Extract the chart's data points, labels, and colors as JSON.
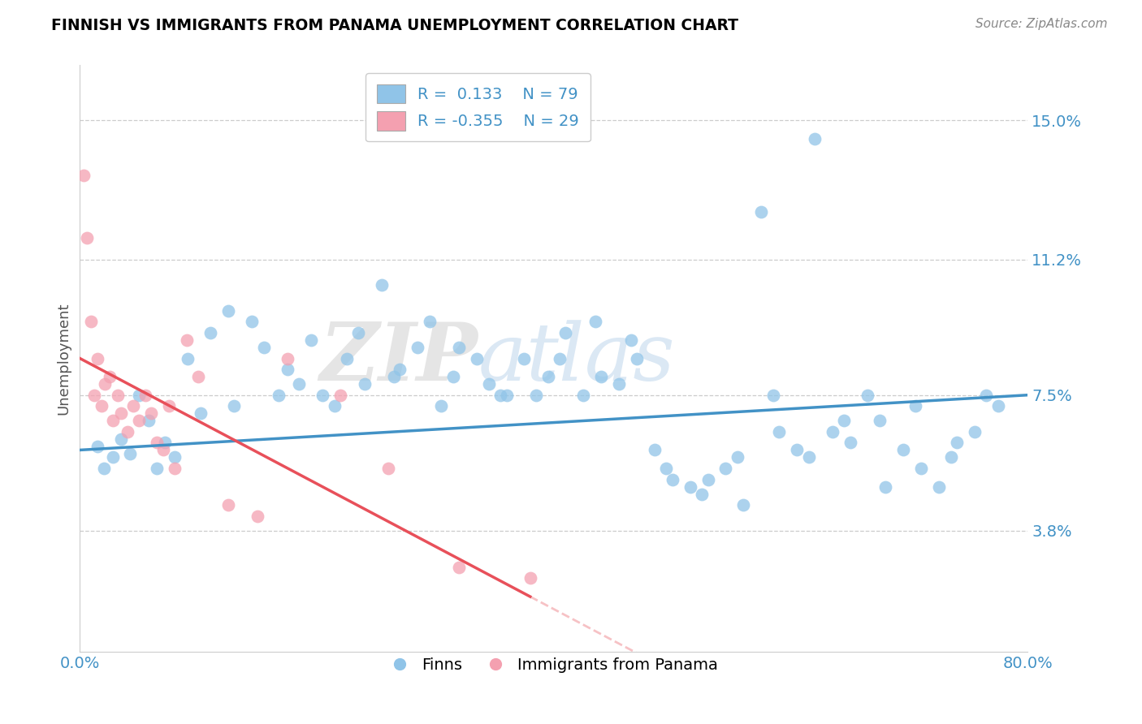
{
  "title": "FINNISH VS IMMIGRANTS FROM PANAMA UNEMPLOYMENT CORRELATION CHART",
  "source_text": "Source: ZipAtlas.com",
  "ylabel_label": "Unemployment",
  "xmin": 0.0,
  "xmax": 80.0,
  "ymin": 0.5,
  "ymax": 16.5,
  "ylabel_ticks": [
    3.8,
    7.5,
    11.2,
    15.0
  ],
  "legend_label_finns": "Finns",
  "legend_label_immigrants": "Immigrants from Panama",
  "finns_R": "0.133",
  "finns_N": "79",
  "immigrants_R": "-0.355",
  "immigrants_N": "29",
  "blue_color": "#90c4e8",
  "pink_color": "#f4a0b0",
  "line_blue": "#4292c6",
  "line_pink": "#e8505a",
  "watermark_zip": "ZIP",
  "watermark_atlas": "atlas",
  "finns_x": [
    1.5,
    2.0,
    2.8,
    3.5,
    4.2,
    5.0,
    5.8,
    6.5,
    7.2,
    8.0,
    9.1,
    10.2,
    11.0,
    12.5,
    13.0,
    14.5,
    15.5,
    16.8,
    17.5,
    18.5,
    19.5,
    20.5,
    21.5,
    22.5,
    23.5,
    24.0,
    25.5,
    26.5,
    27.0,
    28.5,
    29.5,
    30.5,
    31.5,
    32.0,
    33.5,
    34.5,
    35.5,
    36.0,
    37.5,
    38.5,
    39.5,
    40.5,
    41.0,
    42.5,
    43.5,
    44.0,
    45.5,
    46.5,
    47.0,
    48.5,
    49.5,
    50.0,
    51.5,
    52.5,
    53.0,
    54.5,
    55.5,
    56.0,
    57.5,
    58.5,
    59.0,
    60.5,
    61.5,
    62.0,
    63.5,
    64.5,
    65.0,
    66.5,
    67.5,
    68.0,
    69.5,
    70.5,
    71.0,
    72.5,
    73.5,
    74.0,
    75.5,
    76.5,
    77.5
  ],
  "finns_y": [
    6.1,
    5.5,
    5.8,
    6.3,
    5.9,
    7.5,
    6.8,
    5.5,
    6.2,
    5.8,
    8.5,
    7.0,
    9.2,
    9.8,
    7.2,
    9.5,
    8.8,
    7.5,
    8.2,
    7.8,
    9.0,
    7.5,
    7.2,
    8.5,
    9.2,
    7.8,
    10.5,
    8.0,
    8.2,
    8.8,
    9.5,
    7.2,
    8.0,
    8.8,
    8.5,
    7.8,
    7.5,
    7.5,
    8.5,
    7.5,
    8.0,
    8.5,
    9.2,
    7.5,
    9.5,
    8.0,
    7.8,
    9.0,
    8.5,
    6.0,
    5.5,
    5.2,
    5.0,
    4.8,
    5.2,
    5.5,
    5.8,
    4.5,
    12.5,
    7.5,
    6.5,
    6.0,
    5.8,
    14.5,
    6.5,
    6.8,
    6.2,
    7.5,
    6.8,
    5.0,
    6.0,
    7.2,
    5.5,
    5.0,
    5.8,
    6.2,
    6.5,
    7.5,
    7.2
  ],
  "immigrants_x": [
    0.3,
    0.6,
    0.9,
    1.2,
    1.5,
    1.8,
    2.1,
    2.5,
    2.8,
    3.2,
    3.5,
    4.0,
    4.5,
    5.0,
    5.5,
    6.0,
    6.5,
    7.0,
    7.5,
    8.0,
    9.0,
    10.0,
    12.5,
    15.0,
    17.5,
    22.0,
    26.0,
    32.0,
    38.0
  ],
  "immigrants_y": [
    13.5,
    11.8,
    9.5,
    7.5,
    8.5,
    7.2,
    7.8,
    8.0,
    6.8,
    7.5,
    7.0,
    6.5,
    7.2,
    6.8,
    7.5,
    7.0,
    6.2,
    6.0,
    7.2,
    5.5,
    9.0,
    8.0,
    4.5,
    4.2,
    8.5,
    7.5,
    5.5,
    2.8,
    2.5
  ],
  "pink_line_x0": 0.0,
  "pink_line_y0": 8.5,
  "pink_line_x1": 38.0,
  "pink_line_y1": 2.0,
  "blue_line_x0": 0.0,
  "blue_line_y0": 6.0,
  "blue_line_x1": 80.0,
  "blue_line_y1": 7.5
}
